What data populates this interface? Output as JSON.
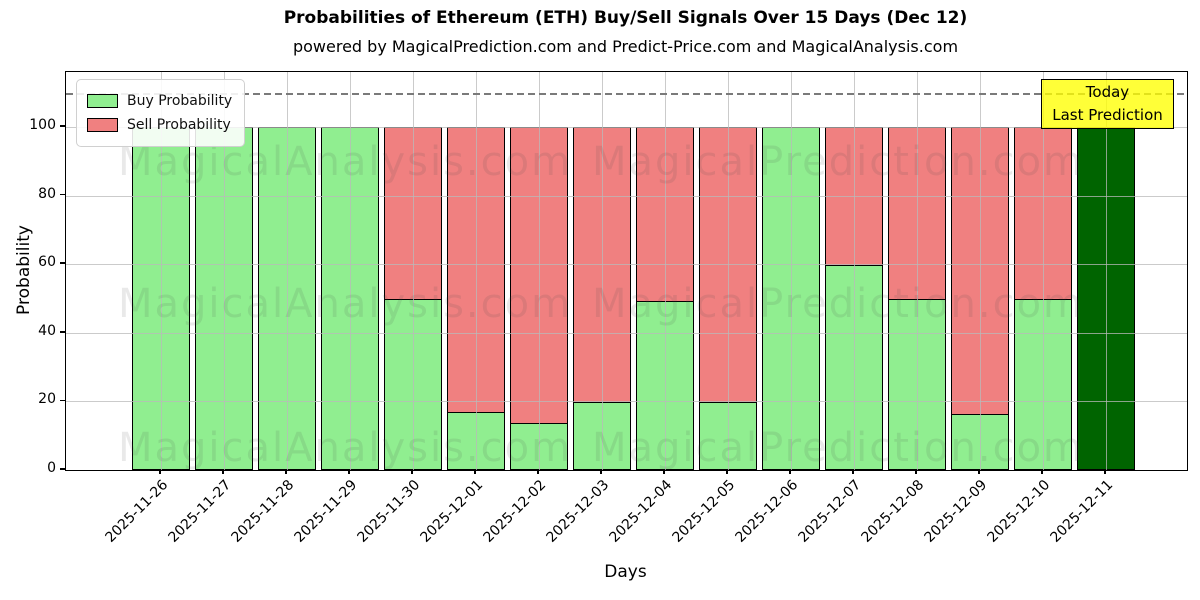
{
  "chart_data": {
    "type": "bar",
    "stacked": true,
    "title": "Probabilities of Ethereum (ETH) Buy/Sell Signals Over 15 Days (Dec 12)",
    "subtitle": "powered by MagicalPrediction.com and Predict-Price.com and MagicalAnalysis.com",
    "xlabel": "Days",
    "ylabel": "Probability",
    "categories": [
      "2025-11-26",
      "2025-11-27",
      "2025-11-28",
      "2025-11-29",
      "2025-11-30",
      "2025-12-01",
      "2025-12-02",
      "2025-12-03",
      "2025-12-04",
      "2025-12-05",
      "2025-12-06",
      "2025-12-07",
      "2025-12-08",
      "2025-12-09",
      "2025-12-10",
      "2025-12-11"
    ],
    "series": [
      {
        "name": "Buy Probability",
        "color": "#90ee90",
        "values": [
          100,
          100,
          100,
          100,
          50,
          17,
          14,
          20,
          49.5,
          20,
          100,
          60,
          50,
          16.5,
          50,
          100
        ]
      },
      {
        "name": "Sell Probability",
        "color": "#f08080",
        "values": [
          0,
          0,
          0,
          0,
          50,
          83,
          86,
          80,
          50.5,
          80,
          0,
          40,
          50,
          83.5,
          50,
          0
        ]
      }
    ],
    "highlight_bar": {
      "index": 15,
      "category": "2025-12-11",
      "color": "#006400"
    },
    "ylim": [
      0,
      116
    ],
    "yticks": [
      0,
      20,
      40,
      60,
      80,
      100
    ],
    "grid": true,
    "legend_position": "upper-left",
    "dashed_line_y": 110,
    "annotation": {
      "lines": [
        "Today",
        "Last Prediction"
      ],
      "bg_color": "#ffff00"
    },
    "watermarks": [
      "MagicalAnalysis.com",
      "MagicalPrediction.com"
    ],
    "colors": {
      "bar_edge": "#000000",
      "grid": "#bbbbbb",
      "dashed_line": "#7a7a7a",
      "annotation_border": "#000000",
      "legend_border": "#d0d0d0"
    }
  }
}
